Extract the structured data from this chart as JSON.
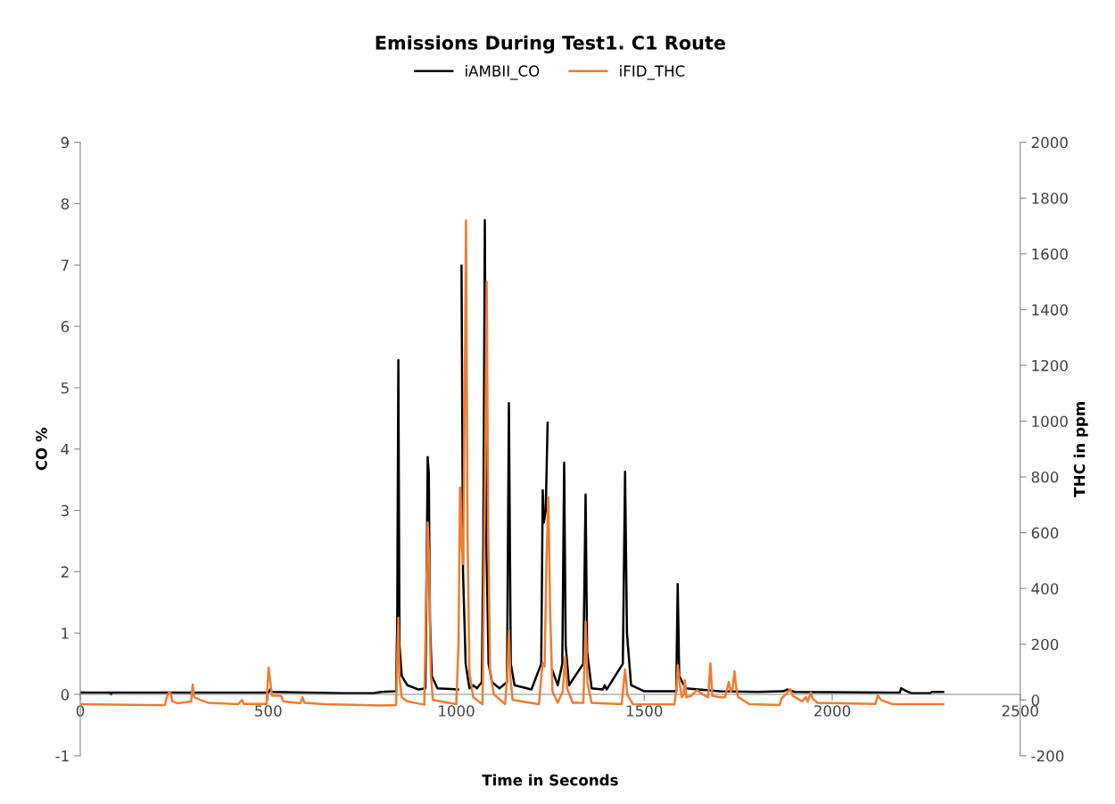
{
  "chart_data": {
    "type": "line",
    "title": "Emissions During Test1. C1 Route",
    "xlabel": "Time in Seconds",
    "ylabel": "CO %",
    "y2label": "THC in ppm",
    "xlim": [
      0,
      2500
    ],
    "xticks": [
      0,
      500,
      1000,
      1500,
      2000,
      2500
    ],
    "ylim": [
      -1,
      9
    ],
    "yticks": [
      -1,
      0,
      1,
      2,
      3,
      4,
      5,
      6,
      7,
      8,
      9
    ],
    "y2lim": [
      -200,
      2000
    ],
    "y2ticks": [
      -200,
      0,
      200,
      400,
      600,
      800,
      1000,
      1200,
      1400,
      1600,
      1800,
      2000
    ],
    "grid": false,
    "legend": "top",
    "marker": "none",
    "line_style": "solid",
    "series": [
      {
        "name": "iAMBII_CO",
        "color": "#000000",
        "x": [
          0,
          80,
          82,
          84,
          500,
          505,
          510,
          700,
          780,
          800,
          840,
          843,
          846,
          849,
          855,
          870,
          900,
          918,
          922,
          924,
          927,
          930,
          935,
          950,
          1005,
          1009,
          1014,
          1018,
          1025,
          1035,
          1045,
          1055,
          1068,
          1072,
          1076,
          1080,
          1086,
          1095,
          1105,
          1115,
          1135,
          1140,
          1145,
          1155,
          1200,
          1226,
          1230,
          1233,
          1238,
          1243,
          1248,
          1255,
          1270,
          1282,
          1287,
          1291,
          1300,
          1338,
          1344,
          1348,
          1360,
          1390,
          1395,
          1400,
          1443,
          1449,
          1454,
          1465,
          1500,
          1585,
          1589,
          1593,
          1610,
          1700,
          1800,
          1870,
          1880,
          1900,
          2150,
          2180,
          2183,
          2195,
          2210,
          2260,
          2265,
          2295
        ],
        "values": [
          0.03,
          0.03,
          0.0,
          0.03,
          0.03,
          0.08,
          0.04,
          0.02,
          0.02,
          0.04,
          0.05,
          1.2,
          5.45,
          0.8,
          0.3,
          0.15,
          0.08,
          0.1,
          2.5,
          3.87,
          3.6,
          1.2,
          0.3,
          0.1,
          0.08,
          null,
          6.99,
          2.0,
          0.5,
          0.1,
          0.15,
          0.1,
          0.2,
          2.5,
          7.73,
          2.5,
          0.5,
          0.2,
          0.15,
          0.1,
          0.2,
          4.75,
          0.5,
          0.15,
          0.08,
          0.5,
          3.33,
          2.8,
          3.0,
          4.43,
          null,
          0.4,
          0.15,
          0.5,
          3.78,
          0.8,
          0.15,
          0.5,
          3.26,
          0.7,
          0.1,
          0.08,
          0.15,
          0.08,
          0.5,
          3.63,
          1.0,
          0.15,
          0.05,
          0.05,
          1.8,
          0.3,
          0.1,
          0.05,
          0.04,
          0.05,
          0.08,
          0.04,
          0.03,
          0.03,
          0.1,
          0.06,
          0.02,
          0.02,
          0.04,
          0.04
        ]
      },
      {
        "name": "iFID_THC",
        "color": "#ed7d31",
        "axis": "y2",
        "x": [
          0,
          180,
          225,
          230,
          236,
          240,
          245,
          260,
          295,
          299,
          303,
          320,
          340,
          420,
          430,
          435,
          495,
          501,
          505,
          510,
          530,
          535,
          540,
          585,
          591,
          596,
          650,
          800,
          840,
          843,
          846,
          849,
          855,
          870,
          915,
          919,
          924,
          928,
          932,
          938,
          1000,
          1006,
          1010,
          1014,
          1018,
          1022,
          1026,
          1030,
          1035,
          1045,
          1070,
          1074,
          1077,
          1081,
          1085,
          1090,
          1100,
          1130,
          1136,
          1140,
          1144,
          1150,
          1220,
          1226,
          1230,
          1235,
          1240,
          1245,
          1250,
          1256,
          1270,
          1283,
          1290,
          1295,
          1310,
          1338,
          1344,
          1349,
          1360,
          1440,
          1449,
          1455,
          1470,
          1580,
          1585,
          1589,
          1594,
          1600,
          1605,
          1608,
          1612,
          1625,
          1640,
          1655,
          1670,
          1676,
          1681,
          1700,
          1715,
          1725,
          1730,
          1735,
          1740,
          1745,
          1750,
          1780,
          1860,
          1865,
          1880,
          1888,
          1895,
          1920,
          1930,
          1935,
          1943,
          1948,
          1960,
          2115,
          2121,
          2130,
          2160,
          2295
        ],
        "values": [
          -15,
          -18,
          -18,
          10,
          29,
          25,
          -5,
          -12,
          -5,
          55,
          10,
          0,
          -10,
          -15,
          0,
          -14,
          -14,
          116,
          70,
          15,
          15,
          13,
          -5,
          -12,
          10,
          -10,
          -15,
          -20,
          -18,
          150,
          295,
          80,
          10,
          -5,
          -17,
          300,
          637,
          500,
          100,
          0,
          -15,
          200,
          762,
          560,
          488,
          1000,
          1720,
          600,
          100,
          10,
          -15,
          500,
          846,
          1500,
          600,
          100,
          20,
          -15,
          100,
          252,
          80,
          0,
          -15,
          80,
          133,
          120,
          500,
          727,
          300,
          30,
          -10,
          30,
          155,
          40,
          -10,
          -10,
          281,
          60,
          -10,
          -15,
          110,
          20,
          -15,
          -16,
          30,
          125,
          60,
          10,
          20,
          71,
          10,
          15,
          35,
          20,
          10,
          132,
          15,
          10,
          10,
          65,
          30,
          40,
          103,
          40,
          10,
          -15,
          -18,
          5,
          25,
          39,
          15,
          -5,
          10,
          -5,
          26,
          5,
          -10,
          -14,
          16,
          0,
          -15,
          -15
        ]
      }
    ]
  }
}
